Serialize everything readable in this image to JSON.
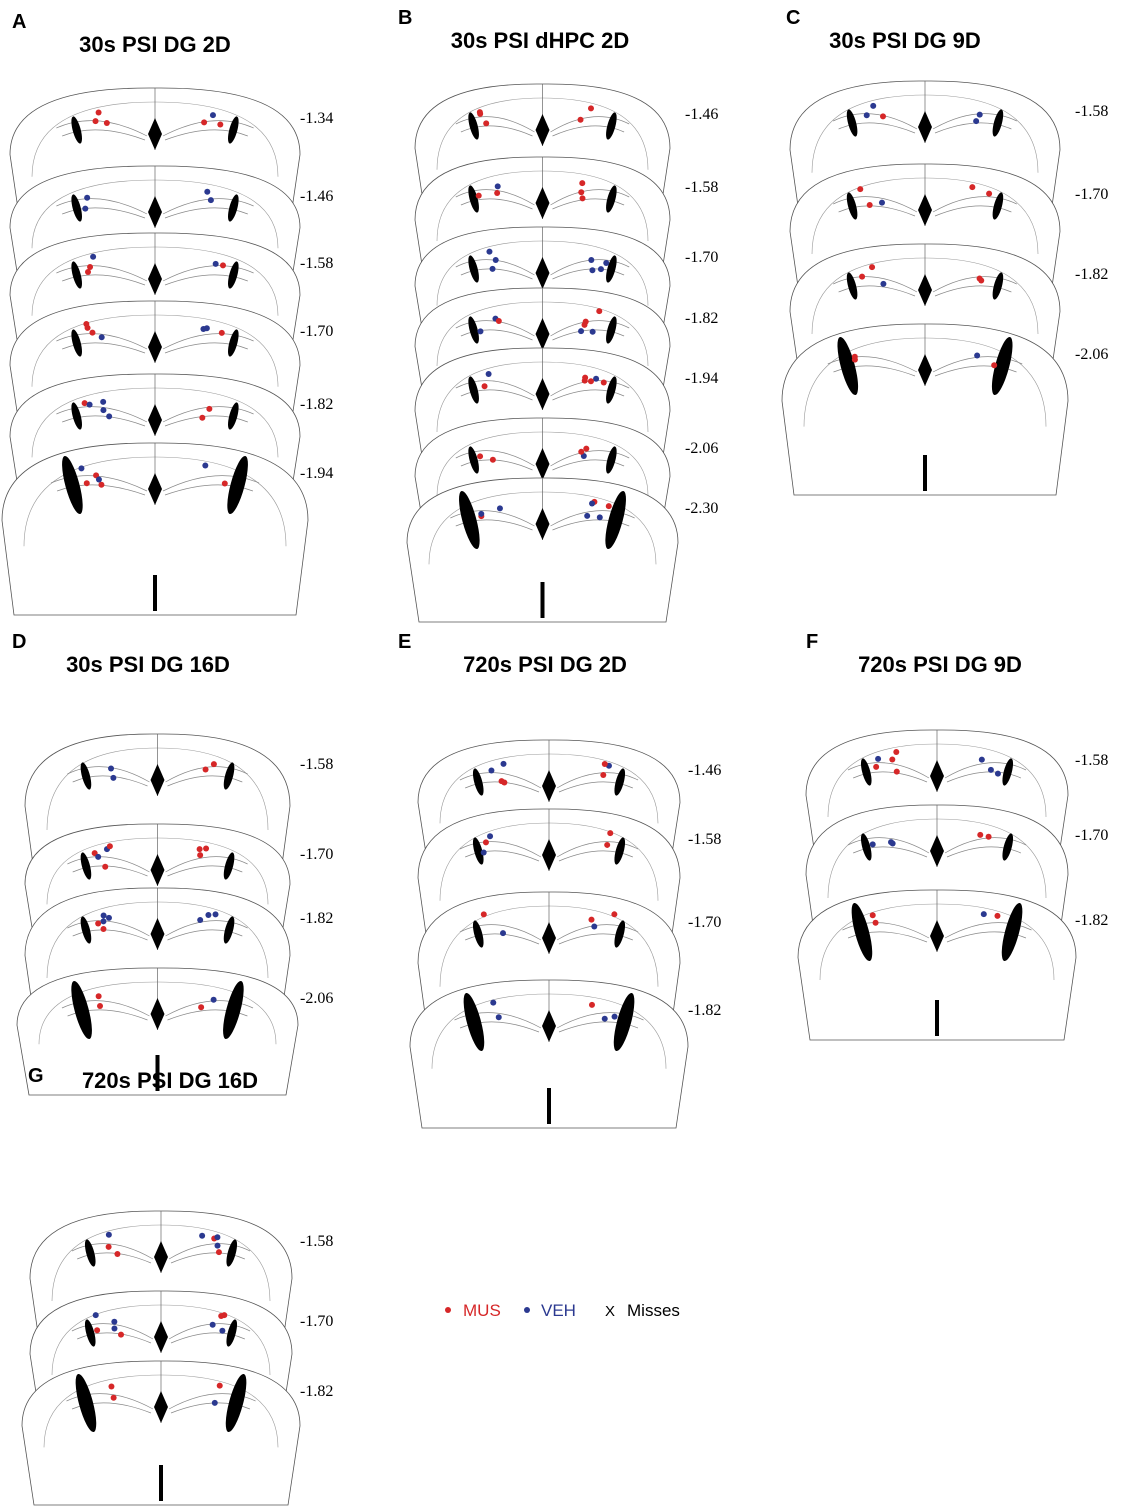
{
  "panels": [
    {
      "letter": "A",
      "title": "30s PSI DG 2D",
      "sections": [
        "-1.34",
        "-1.46",
        "-1.58",
        "-1.70",
        "-1.82",
        "-1.94"
      ]
    },
    {
      "letter": "B",
      "title": "30s PSI dHPC 2D",
      "sections": [
        "-1.46",
        "-1.58",
        "-1.70",
        "-1.82",
        "-1.94",
        "-2.06",
        "-2.30"
      ]
    },
    {
      "letter": "C",
      "title": "30s PSI DG 9D",
      "sections": [
        "-1.58",
        "-1.70",
        "-1.82",
        "-2.06"
      ]
    },
    {
      "letter": "D",
      "title": "30s PSI DG 16D",
      "sections": [
        "-1.58",
        "-1.70",
        "-1.82",
        "-2.06"
      ]
    },
    {
      "letter": "E",
      "title": "720s PSI DG 2D",
      "sections": [
        "-1.46",
        "-1.58",
        "-1.70",
        "-1.82"
      ]
    },
    {
      "letter": "F",
      "title": "720s PSI DG 9D",
      "sections": [
        "-1.58",
        "-1.70",
        "-1.82"
      ]
    },
    {
      "letter": "G",
      "title": "720s PSI DG 16D",
      "sections": [
        "-1.58",
        "-1.70",
        "-1.82"
      ]
    }
  ],
  "legend": [
    {
      "label": "MUS"
    },
    {
      "label": "VEH"
    },
    {
      "symbol": "X",
      "label": "Misses"
    }
  ]
}
